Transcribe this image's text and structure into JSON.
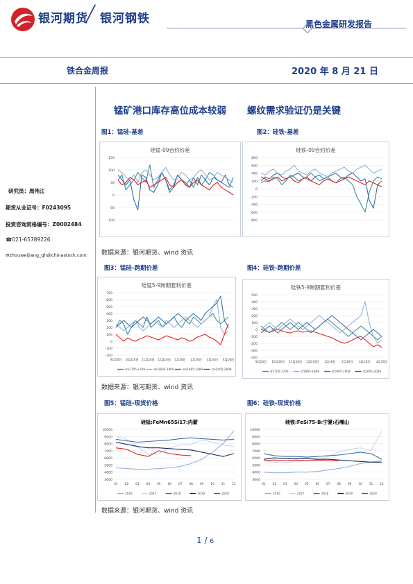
{
  "header": {
    "brand_left": "银河期货",
    "brand_sep": "╱",
    "brand_right": "银河钢铁",
    "report_series": "黑色金属研发报告",
    "report_type": "铁合金周报",
    "date": "2020 年 8 月 21 日"
  },
  "sidebar": {
    "analyst": "研究员：周伟江",
    "license": "期货从业证号：F0243095",
    "advisor": "投资咨询资格编号：Z0002484",
    "phone": "☎021-65789226",
    "email": "✉zhouweijiang_qh@chinastock.com"
  },
  "headlines": {
    "left": "锰矿港口库存高位成本较弱",
    "right": "螺纹需求验证仍是关键"
  },
  "figures": {
    "fig1_caption": "图1：锰硅-基差",
    "fig2_caption": "图2：硅铁-基差",
    "fig3_caption": "图3：锰硅-跨期价差",
    "fig4_caption": "图4：硅铁-跨期价差",
    "fig5_caption": "图5：锰硅-现货价格",
    "fig6_caption": "图6：硅铁-现货价格",
    "source": "数据来源：银河期货、wind 资讯"
  },
  "colors": {
    "brand": "#1f3f8a",
    "logo_red": "#d2232a",
    "teal": "#3e8e96",
    "steel": "#3a6ea5",
    "light_blue": "#8fb3d9",
    "navy": "#1b2a5c",
    "red": "#e02020"
  },
  "chart_data": [
    {
      "id": "fig1",
      "type": "line",
      "title": "硅锰-09合约价差",
      "ylim": [
        -100,
        150
      ],
      "yticks": [
        -100,
        -50,
        0,
        50,
        100,
        150
      ],
      "series": [
        {
          "color": "#3e8e96",
          "values": [
            60,
            80,
            20,
            40,
            60,
            90,
            70,
            50,
            120,
            30,
            60,
            90,
            60,
            20,
            40,
            80,
            60,
            40,
            60,
            30,
            70,
            40,
            60,
            90,
            80,
            60,
            50,
            40,
            30,
            70
          ]
        },
        {
          "color": "#3a6ea5",
          "values": [
            80,
            60,
            40,
            60,
            -20,
            -60,
            80,
            70,
            20,
            10,
            40,
            90,
            60,
            10,
            30,
            80,
            60,
            50,
            30,
            70,
            40,
            80,
            60,
            40,
            70,
            60,
            50,
            80,
            40,
            30
          ]
        },
        {
          "color": "#8fb3d9",
          "values": [
            100,
            90,
            70,
            60,
            80,
            50,
            90,
            100,
            80,
            60,
            70,
            90,
            110,
            80,
            60,
            70,
            90,
            80,
            60,
            70,
            90,
            100,
            80,
            60,
            70,
            90,
            80,
            70,
            60,
            50
          ]
        },
        {
          "color": "#e02020",
          "values": [
            60,
            40,
            50,
            70,
            60,
            40,
            50,
            60,
            30,
            40,
            50,
            60,
            70,
            40,
            30,
            50,
            60,
            40,
            30,
            50,
            60,
            40,
            30,
            20,
            40,
            50,
            30,
            20,
            10,
            0
          ]
        }
      ]
    },
    {
      "id": "fig2",
      "type": "line",
      "title": "硅铁-09合约价差",
      "ylim": [
        -800,
        800
      ],
      "yticks": [
        -800,
        -600,
        -400,
        -200,
        0,
        200,
        400,
        600,
        800
      ],
      "series": [
        {
          "color": "#3e8e96",
          "values": [
            150,
            200,
            180,
            300,
            250,
            100,
            200,
            350,
            300,
            200,
            250,
            300,
            400,
            300,
            200,
            250,
            300,
            200,
            150,
            250,
            300,
            200,
            100,
            -200,
            -400,
            -600,
            -100,
            200,
            300,
            250
          ]
        },
        {
          "color": "#3a6ea5",
          "values": [
            200,
            300,
            250,
            350,
            400,
            300,
            250,
            300,
            350,
            400,
            300,
            250,
            200,
            300,
            350,
            250,
            300,
            350,
            400,
            300,
            250,
            350,
            400,
            300,
            200,
            250,
            -300,
            -500,
            100,
            200
          ]
        },
        {
          "color": "#8fb3d9",
          "values": [
            400,
            350,
            450,
            500,
            400,
            350,
            450,
            500,
            600,
            450,
            400,
            350,
            450,
            500,
            400,
            350,
            300,
            400,
            450,
            500,
            550,
            450,
            400,
            500,
            550,
            600,
            500,
            400,
            450,
            500
          ]
        },
        {
          "color": "#e02020",
          "values": [
            300,
            250,
            200,
            250,
            300,
            200,
            250,
            300,
            200,
            150,
            250,
            300,
            200,
            150,
            100,
            200,
            250,
            200,
            150,
            200,
            250,
            300,
            250,
            200,
            150,
            100,
            200,
            150,
            100,
            50
          ]
        }
      ]
    },
    {
      "id": "fig3",
      "type": "line",
      "title": "硅锰5-9跨期套利价差",
      "ylim": [
        -200,
        700
      ],
      "yticks": [
        -200,
        -100,
        0,
        100,
        200,
        300,
        400,
        500,
        600,
        700
      ],
      "xticks": [
        "9月16日",
        "10月16日",
        "11月16日",
        "12月16日",
        "1月16日",
        "2月16日",
        "3月16日",
        "4月16日"
      ],
      "series": [
        {
          "name": "sm1705-1709",
          "color": "#3e8e96",
          "values": [
            200,
            300,
            250,
            100,
            200,
            300,
            250,
            200,
            350,
            200,
            250,
            300,
            200,
            250,
            300,
            350,
            250,
            200,
            300,
            250,
            350,
            300,
            250,
            300,
            350,
            400,
            300,
            250,
            300,
            350
          ]
        },
        {
          "name": "sm1805-1809",
          "color": "#8fb3d9",
          "values": [
            250,
            200,
            150,
            200,
            250,
            300,
            200,
            150,
            200,
            250,
            300,
            250,
            200,
            300,
            250,
            200,
            250,
            300,
            350,
            300,
            250,
            200,
            250,
            300,
            350,
            500,
            600,
            200,
            100,
            150
          ]
        },
        {
          "name": "sm1905-1909",
          "color": "#3a6ea5",
          "values": [
            200,
            250,
            300,
            250,
            200,
            250,
            300,
            350,
            300,
            250,
            300,
            350,
            300,
            250,
            300,
            350,
            400,
            350,
            300,
            350,
            400,
            350,
            300,
            400,
            450,
            500,
            550,
            650,
            300,
            200
          ]
        },
        {
          "name": "sm2005-2009",
          "color": "#e02020",
          "values": [
            100,
            50,
            0,
            50,
            20,
            0,
            30,
            50,
            80,
            60,
            40,
            20,
            50,
            80,
            60,
            40,
            20,
            50,
            30,
            0,
            20,
            60,
            80,
            100,
            60,
            40,
            0,
            -50,
            100,
            250
          ]
        }
      ]
    },
    {
      "id": "fig4",
      "type": "line",
      "title": "硅铁5-9跨期套利价差",
      "ylim": [
        -400,
        500
      ],
      "yticks": [
        -400,
        -300,
        -200,
        -100,
        0,
        100,
        200,
        300,
        400,
        500
      ],
      "xticks": [
        "9月16日",
        "10月16日",
        "11月16日",
        "12月16日",
        "1月16日",
        "2月16日",
        "3月16日",
        "4月16日"
      ],
      "series": [
        {
          "name": "sf1705-1709",
          "color": "#3e8e96",
          "values": [
            50,
            0,
            -50,
            0,
            50,
            100,
            50,
            0,
            50,
            100,
            50,
            0,
            -50,
            0,
            50,
            100,
            150,
            100,
            50,
            0,
            -50,
            -100,
            -50,
            0,
            50,
            0,
            -50,
            -100,
            -150,
            -100
          ]
        },
        {
          "name": "sf1805-1809",
          "color": "#8fb3d9",
          "values": [
            0,
            50,
            100,
            50,
            0,
            50,
            100,
            150,
            100,
            50,
            0,
            50,
            100,
            150,
            200,
            150,
            100,
            50,
            0,
            -50,
            0,
            50,
            100,
            150,
            200,
            400,
            100,
            -100,
            -200,
            -150
          ]
        },
        {
          "name": "sf1905-1909",
          "color": "#3a6ea5",
          "values": [
            -50,
            0,
            50,
            0,
            -50,
            0,
            50,
            100,
            50,
            0,
            50,
            100,
            50,
            0,
            50,
            100,
            150,
            200,
            150,
            100,
            50,
            0,
            -50,
            -100,
            -150,
            -100,
            -50,
            0,
            -50,
            -100
          ]
        },
        {
          "name": "sf2005-2009",
          "color": "#e02020",
          "values": [
            0,
            -20,
            -40,
            -20,
            0,
            -20,
            -40,
            -50,
            -30,
            -20,
            -40,
            -30,
            -20,
            -40,
            -60,
            -80,
            -100,
            -120,
            -150,
            -180,
            -200,
            -180,
            -150,
            -120,
            -100,
            -150,
            -200,
            -250,
            -220,
            -260
          ]
        }
      ]
    },
    {
      "id": "fig5",
      "type": "line",
      "title": "硅锰:FeMn65Si17:内蒙",
      "ylim": [
        3000,
        10000
      ],
      "yticks": [
        3000,
        4000,
        5000,
        6000,
        7000,
        8000,
        9000,
        10000
      ],
      "xticks": [
        "01",
        "02",
        "03",
        "04",
        "05",
        "06",
        "07",
        "08",
        "09",
        "10",
        "11",
        "12"
      ],
      "series": [
        {
          "name": "2016",
          "color": "#8fb3d9",
          "values": [
            4600,
            4500,
            4400,
            4400,
            4500,
            4600,
            4800,
            5200,
            5800,
            6800,
            8000,
            9800
          ]
        },
        {
          "name": "2017",
          "color": "#c5d9ee",
          "values": [
            9000,
            8600,
            7600,
            6500,
            6600,
            7400,
            7800,
            7900,
            8500,
            8200,
            7800,
            7600
          ]
        },
        {
          "name": "2018",
          "color": "#3a6ea5",
          "values": [
            8600,
            8400,
            8200,
            8300,
            8400,
            8500,
            8700,
            8800,
            8700,
            8600,
            8500,
            8600
          ]
        },
        {
          "name": "2019",
          "color": "#1b2a5c",
          "values": [
            8200,
            7900,
            7600,
            7400,
            7400,
            7300,
            7200,
            7100,
            6800,
            6500,
            6200,
            6600
          ]
        },
        {
          "name": "2020",
          "color": "#e02020",
          "values": [
            7400,
            7200,
            6500,
            6200,
            7000,
            6600,
            6400,
            6300
          ]
        }
      ]
    },
    {
      "id": "fig6",
      "type": "line",
      "title": "硅铁:FeSi75-B:宁夏:石嘴山",
      "ylim": [
        3000,
        10000
      ],
      "yticks": [
        3000,
        4000,
        5000,
        6000,
        7000,
        8000,
        9000,
        10000
      ],
      "xticks": [
        "01",
        "02",
        "03",
        "04",
        "05",
        "06",
        "07",
        "08",
        "09",
        "10",
        "11",
        "12"
      ],
      "series": [
        {
          "name": "2016",
          "color": "#8fb3d9",
          "values": [
            4000,
            3900,
            3900,
            4000,
            4000,
            4100,
            4300,
            4500,
            4800,
            5200,
            5400,
            5600
          ]
        },
        {
          "name": "2017",
          "color": "#c5d9ee",
          "values": [
            5600,
            5400,
            5300,
            5500,
            5600,
            5700,
            6200,
            6800,
            7200,
            7400,
            7000,
            9800
          ]
        },
        {
          "name": "2018",
          "color": "#3a6ea5",
          "values": [
            6600,
            6300,
            6200,
            6200,
            6100,
            6200,
            6300,
            6400,
            6600,
            6800,
            6600,
            5800
          ]
        },
        {
          "name": "2019",
          "color": "#1b2a5c",
          "values": [
            5800,
            6000,
            5900,
            5900,
            5900,
            5800,
            5800,
            5700,
            5600,
            5500,
            5400,
            5400
          ]
        },
        {
          "name": "2020",
          "color": "#e02020",
          "values": [
            5600,
            5700,
            5600,
            5700,
            5600,
            5700,
            5600,
            5600
          ]
        }
      ]
    }
  ],
  "footer": {
    "page": "1",
    "sep": "/",
    "total": "6"
  }
}
